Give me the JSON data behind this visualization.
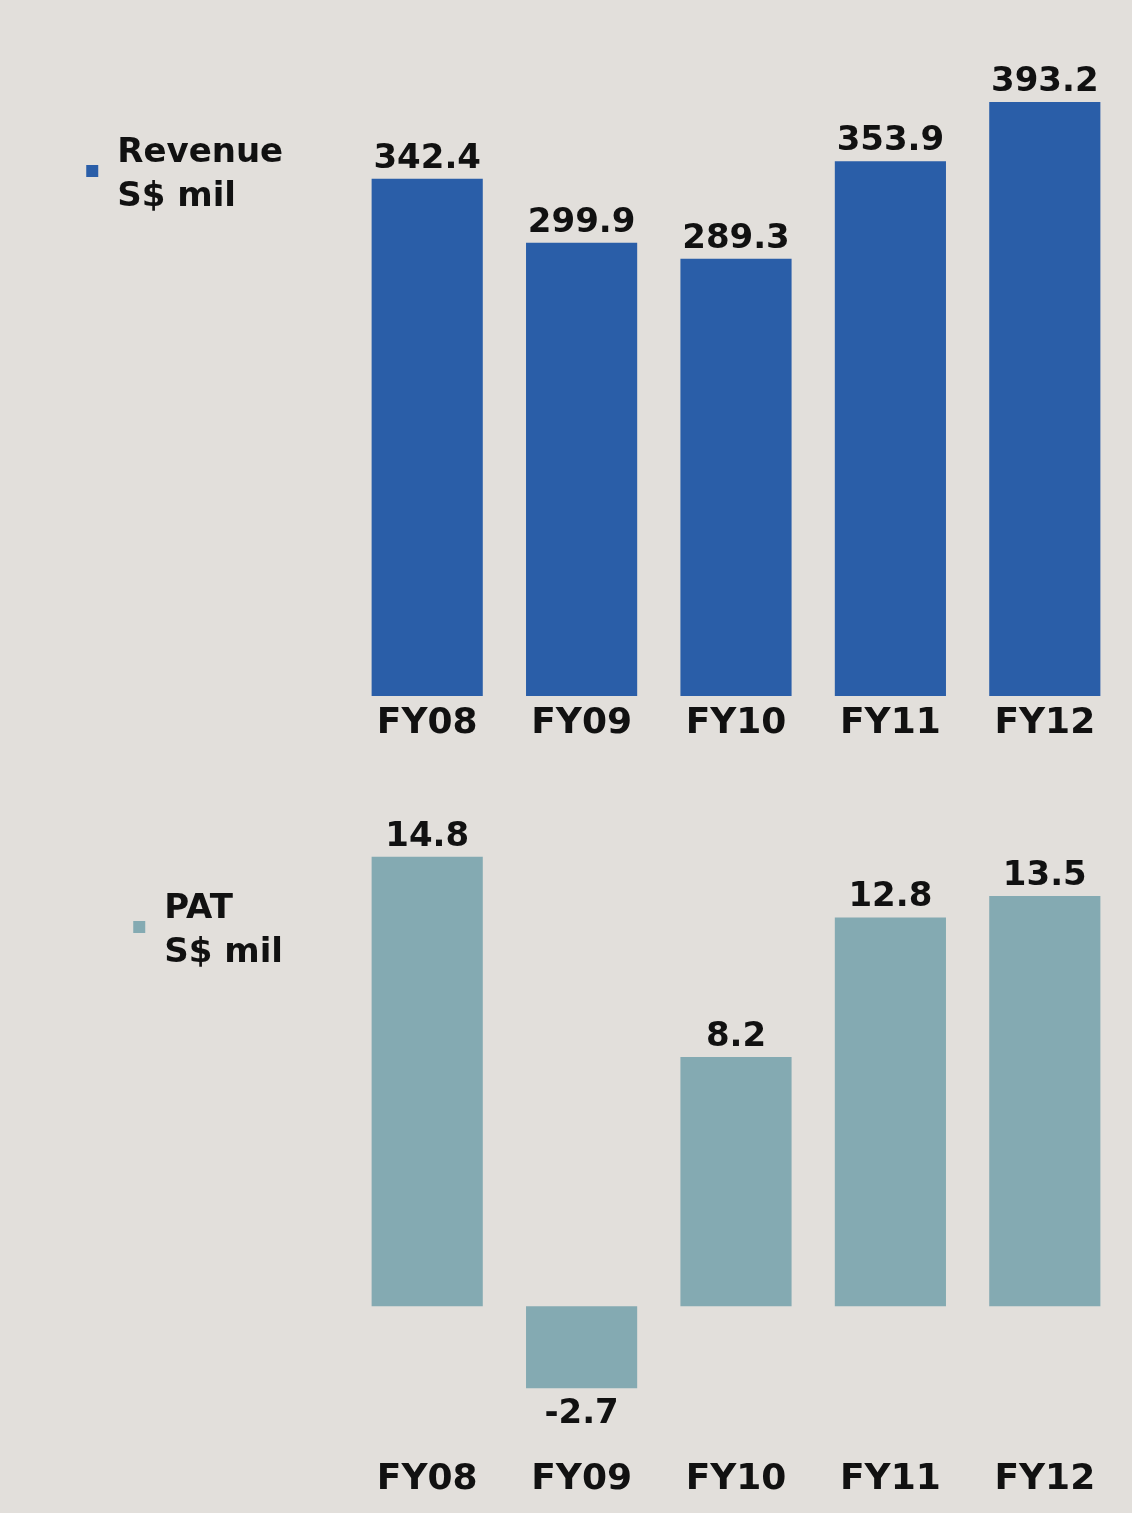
{
  "chart_data": [
    {
      "type": "bar",
      "categories": [
        "FY08",
        "FY09",
        "FY10",
        "FY11",
        "FY12"
      ],
      "series": [
        {
          "name": "Revenue\nS$ mil",
          "color": "#2a5ea8",
          "values": [
            342.4,
            299.9,
            289.3,
            353.9,
            393.2
          ]
        }
      ],
      "data_labels": true,
      "legend": "left",
      "grid": false
    },
    {
      "type": "bar",
      "categories": [
        "FY08",
        "FY09",
        "FY10",
        "FY11",
        "FY12"
      ],
      "series": [
        {
          "name": "PAT\nS$ mil",
          "color": "#84aab2",
          "values": [
            14.8,
            -2.7,
            8.2,
            12.8,
            13.5
          ]
        }
      ],
      "data_labels": true,
      "legend": "left",
      "grid": false
    }
  ]
}
